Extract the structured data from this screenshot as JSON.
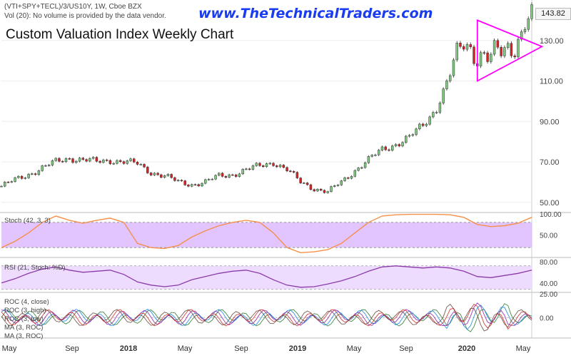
{
  "header": {
    "symbol_line": "(VTI+SPY+TECL)/3/US10Y, 1W, Cboe BZX",
    "volume_line": "Vol (20): No volume is provided by the data vendor.",
    "watermark": "www.TheTechnicalTraders.com",
    "title": "Custom Valuation Index Weekly Chart"
  },
  "last_price": "143.82",
  "colors": {
    "up": "#7fc97f",
    "down": "#e02020",
    "triangle": "#ff00ff",
    "stoch_line": "#f5904a",
    "stoch_band": "#d8b0ff",
    "rsi_line": "#8a3aa8",
    "rsi_band": "#ecd8ff"
  },
  "x_axis": {
    "tick_labels": [
      "May",
      "Sep",
      "2018",
      "May",
      "Sep",
      "2019",
      "May",
      "Sep",
      "2020",
      "May"
    ]
  },
  "panels": {
    "stoch": {
      "label": "Stoch (42, 3, 3)",
      "ticks": [
        "100.00",
        "50.00"
      ]
    },
    "rsi": {
      "label": "RSI (21, Stoch: %D)",
      "ticks": [
        "80.00",
        "40.00"
      ]
    },
    "roc": {
      "legend": [
        "ROC (4, close)",
        "ROC (3, high)",
        "ROC (3, low)",
        "MA (3, ROC)",
        "MA (3, ROC)"
      ],
      "ticks": [
        "25.00",
        "0.00"
      ]
    }
  },
  "chart_data": {
    "type": "candlestick",
    "price_ticks": [
      "130.00",
      "110.00",
      "90.00",
      "70.00",
      "50.00"
    ],
    "price_range": [
      45,
      150
    ],
    "weeks": 156,
    "price_series": [
      [
        0,
        58
      ],
      [
        4,
        61
      ],
      [
        8,
        64
      ],
      [
        12,
        67
      ],
      [
        16,
        70
      ],
      [
        20,
        72
      ],
      [
        24,
        71
      ],
      [
        28,
        70
      ],
      [
        32,
        71
      ],
      [
        36,
        70
      ],
      [
        40,
        69
      ],
      [
        44,
        65
      ],
      [
        48,
        63
      ],
      [
        52,
        60
      ],
      [
        56,
        59
      ],
      [
        60,
        60
      ],
      [
        64,
        63
      ],
      [
        68,
        64
      ],
      [
        72,
        66
      ],
      [
        76,
        68
      ],
      [
        80,
        70
      ],
      [
        84,
        66
      ],
      [
        88,
        60
      ],
      [
        92,
        57
      ],
      [
        96,
        55
      ],
      [
        100,
        60
      ],
      [
        104,
        66
      ],
      [
        108,
        71
      ],
      [
        112,
        76
      ],
      [
        116,
        79
      ],
      [
        120,
        82
      ],
      [
        124,
        88
      ],
      [
        128,
        97
      ],
      [
        132,
        113
      ],
      [
        136,
        129
      ],
      [
        140,
        124
      ],
      [
        144,
        121
      ],
      [
        148,
        125
      ],
      [
        152,
        131
      ],
      [
        156,
        143.82
      ]
    ],
    "stoch_series": [
      [
        0,
        20
      ],
      [
        4,
        35
      ],
      [
        8,
        55
      ],
      [
        12,
        80
      ],
      [
        16,
        95
      ],
      [
        20,
        85
      ],
      [
        24,
        78
      ],
      [
        28,
        85
      ],
      [
        32,
        90
      ],
      [
        36,
        80
      ],
      [
        40,
        30
      ],
      [
        44,
        20
      ],
      [
        48,
        18
      ],
      [
        52,
        25
      ],
      [
        56,
        45
      ],
      [
        60,
        60
      ],
      [
        64,
        72
      ],
      [
        68,
        80
      ],
      [
        72,
        85
      ],
      [
        76,
        80
      ],
      [
        80,
        55
      ],
      [
        84,
        20
      ],
      [
        88,
        8
      ],
      [
        92,
        10
      ],
      [
        96,
        15
      ],
      [
        100,
        30
      ],
      [
        104,
        55
      ],
      [
        108,
        80
      ],
      [
        112,
        95
      ],
      [
        116,
        98
      ],
      [
        120,
        99
      ],
      [
        124,
        99
      ],
      [
        128,
        99
      ],
      [
        132,
        98
      ],
      [
        136,
        92
      ],
      [
        140,
        75
      ],
      [
        144,
        70
      ],
      [
        148,
        72
      ],
      [
        152,
        78
      ],
      [
        156,
        92
      ]
    ],
    "rsi_series": [
      [
        0,
        40
      ],
      [
        4,
        48
      ],
      [
        8,
        58
      ],
      [
        12,
        66
      ],
      [
        16,
        70
      ],
      [
        20,
        64
      ],
      [
        24,
        60
      ],
      [
        28,
        62
      ],
      [
        32,
        64
      ],
      [
        36,
        56
      ],
      [
        40,
        42
      ],
      [
        44,
        36
      ],
      [
        48,
        33
      ],
      [
        52,
        36
      ],
      [
        56,
        46
      ],
      [
        60,
        52
      ],
      [
        64,
        58
      ],
      [
        68,
        62
      ],
      [
        72,
        64
      ],
      [
        76,
        58
      ],
      [
        80,
        46
      ],
      [
        84,
        36
      ],
      [
        88,
        32
      ],
      [
        92,
        33
      ],
      [
        96,
        38
      ],
      [
        100,
        44
      ],
      [
        104,
        52
      ],
      [
        108,
        62
      ],
      [
        112,
        70
      ],
      [
        116,
        72
      ],
      [
        120,
        70
      ],
      [
        124,
        68
      ],
      [
        128,
        70
      ],
      [
        132,
        68
      ],
      [
        136,
        62
      ],
      [
        140,
        52
      ],
      [
        144,
        50
      ],
      [
        148,
        54
      ],
      [
        152,
        58
      ],
      [
        156,
        64
      ]
    ],
    "triangle": {
      "x1": 140,
      "y1top": 140,
      "y1bot": 110,
      "x2": 159,
      "yapex": 127
    }
  }
}
